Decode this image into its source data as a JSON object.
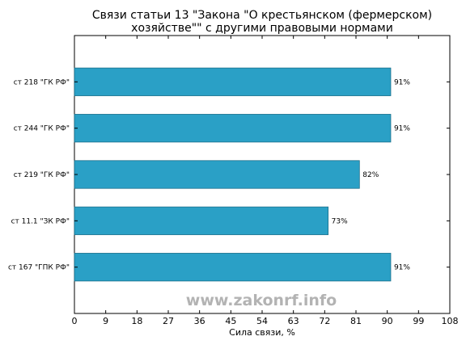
{
  "chart_data": {
    "type": "bar",
    "orientation": "horizontal",
    "title": [
      "Связи статьи 13 \"Закона \"О крестьянском (фермерском)",
      "хозяйстве\"\" с другими правовыми нормами"
    ],
    "xlabel": "Сила связи, %",
    "ylabel": "",
    "categories": [
      "ст 218 \"ГК РФ\"",
      "ст 244 \"ГК РФ\"",
      "ст 219 \"ГК РФ\"",
      "ст 11.1 \"ЗК РФ\"",
      "ст 167 \"ГПК РФ\""
    ],
    "values": [
      91,
      91,
      82,
      73,
      91
    ],
    "data_labels": [
      "91%",
      "91%",
      "82%",
      "73%",
      "91%"
    ],
    "xlim": [
      0,
      108
    ],
    "xticks": [
      0,
      9,
      18,
      27,
      36,
      45,
      54,
      63,
      72,
      81,
      90,
      99,
      108
    ],
    "grid": false,
    "bar_color": "#2aa0c6",
    "bar_edge_color": "#1a6f8b"
  },
  "watermark": "www.zakonrf.info"
}
